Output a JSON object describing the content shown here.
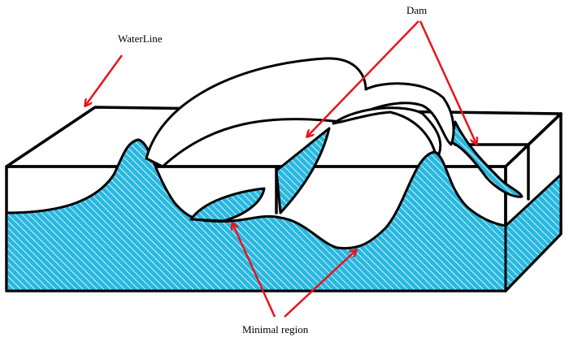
{
  "labels": {
    "waterline": "WaterLine",
    "dam": "Dam",
    "minimal_region": "Minimal region"
  },
  "colors": {
    "water": "#29b8e0",
    "hatch": "#ffffff",
    "arrow": "#e8141c",
    "outline": "#000000"
  }
}
